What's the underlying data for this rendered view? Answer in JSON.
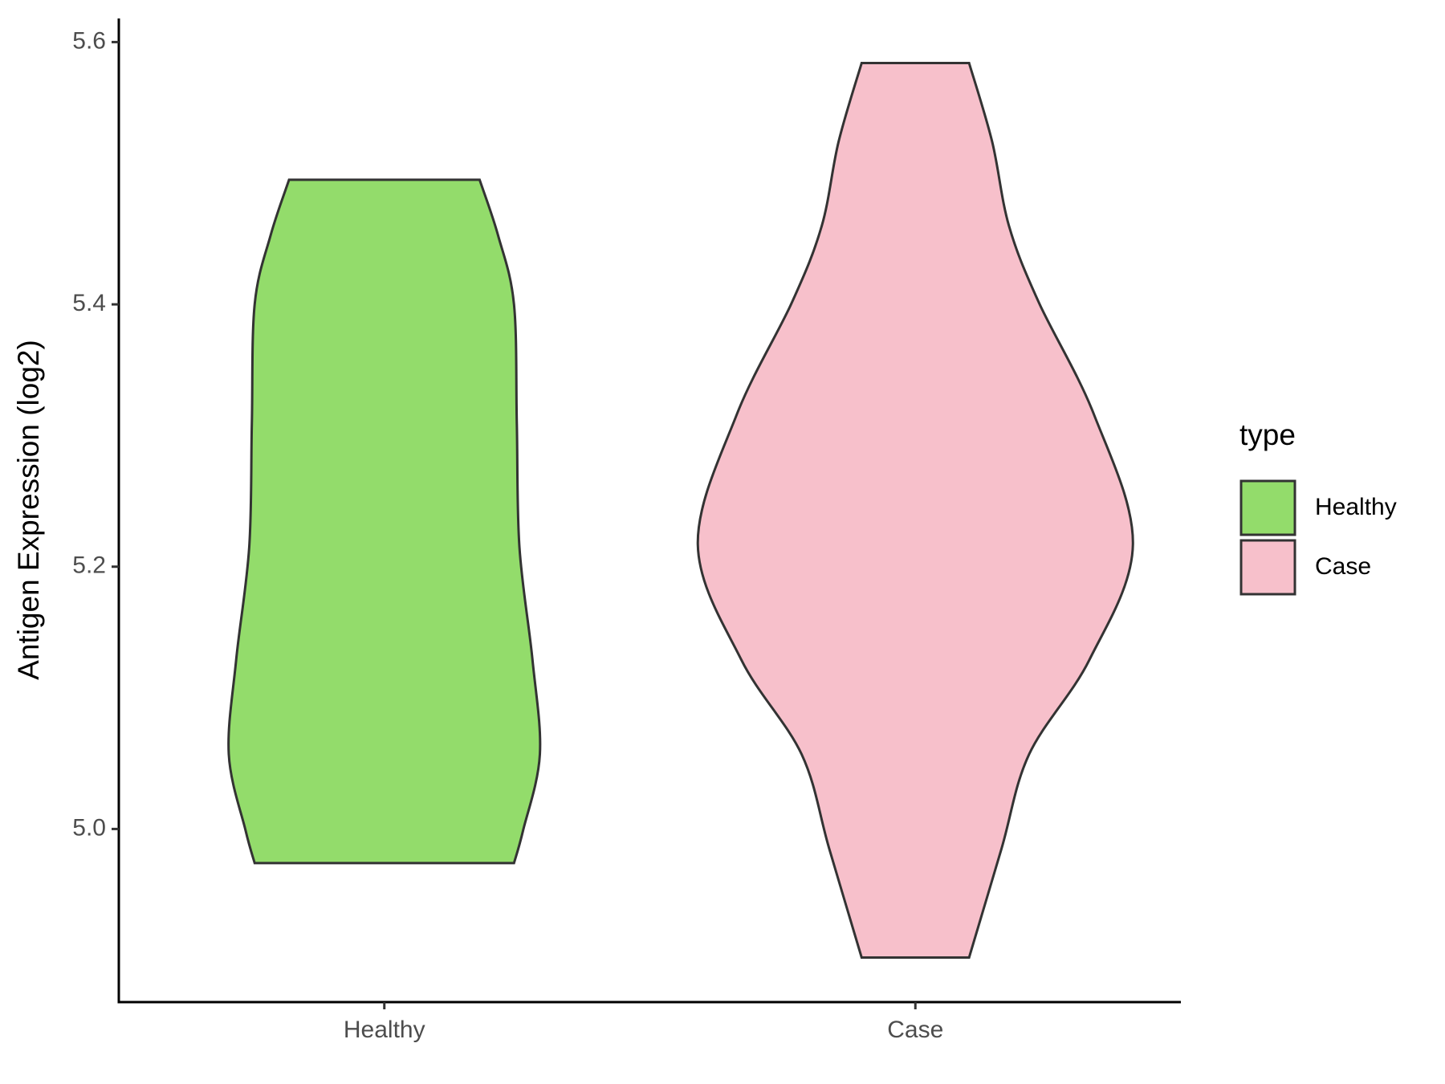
{
  "chart_data": {
    "type": "violin",
    "y_label": "Antigen Expression (log2)",
    "categories": [
      "Healthy",
      "Case"
    ],
    "legend_title": "type",
    "ylim": [
      4.868,
      5.618
    ],
    "yticks": [
      {
        "value": 5.0,
        "label": "5.0"
      },
      {
        "value": 5.2,
        "label": "5.2"
      },
      {
        "value": 5.4,
        "label": "5.4"
      },
      {
        "value": 5.6,
        "label": "5.6"
      }
    ],
    "series": [
      {
        "name": "Healthy",
        "color": "#93dc6b",
        "y": [
          5.495,
          5.4525,
          5.4,
          5.309,
          5.215,
          5.129,
          5.057,
          4.999,
          4.974
        ],
        "density": [
          0.438,
          0.523,
          0.596,
          0.609,
          0.621,
          0.681,
          0.715,
          0.638,
          0.596
        ]
      },
      {
        "name": "Case",
        "color": "#f7c0cb",
        "y": [
          5.584,
          5.524,
          5.46,
          5.402,
          5.316,
          5.217,
          5.129,
          5.057,
          4.985,
          4.902
        ],
        "density": [
          0.247,
          0.353,
          0.43,
          0.566,
          0.821,
          1,
          0.8,
          0.523,
          0.396,
          0.247
        ]
      }
    ]
  }
}
